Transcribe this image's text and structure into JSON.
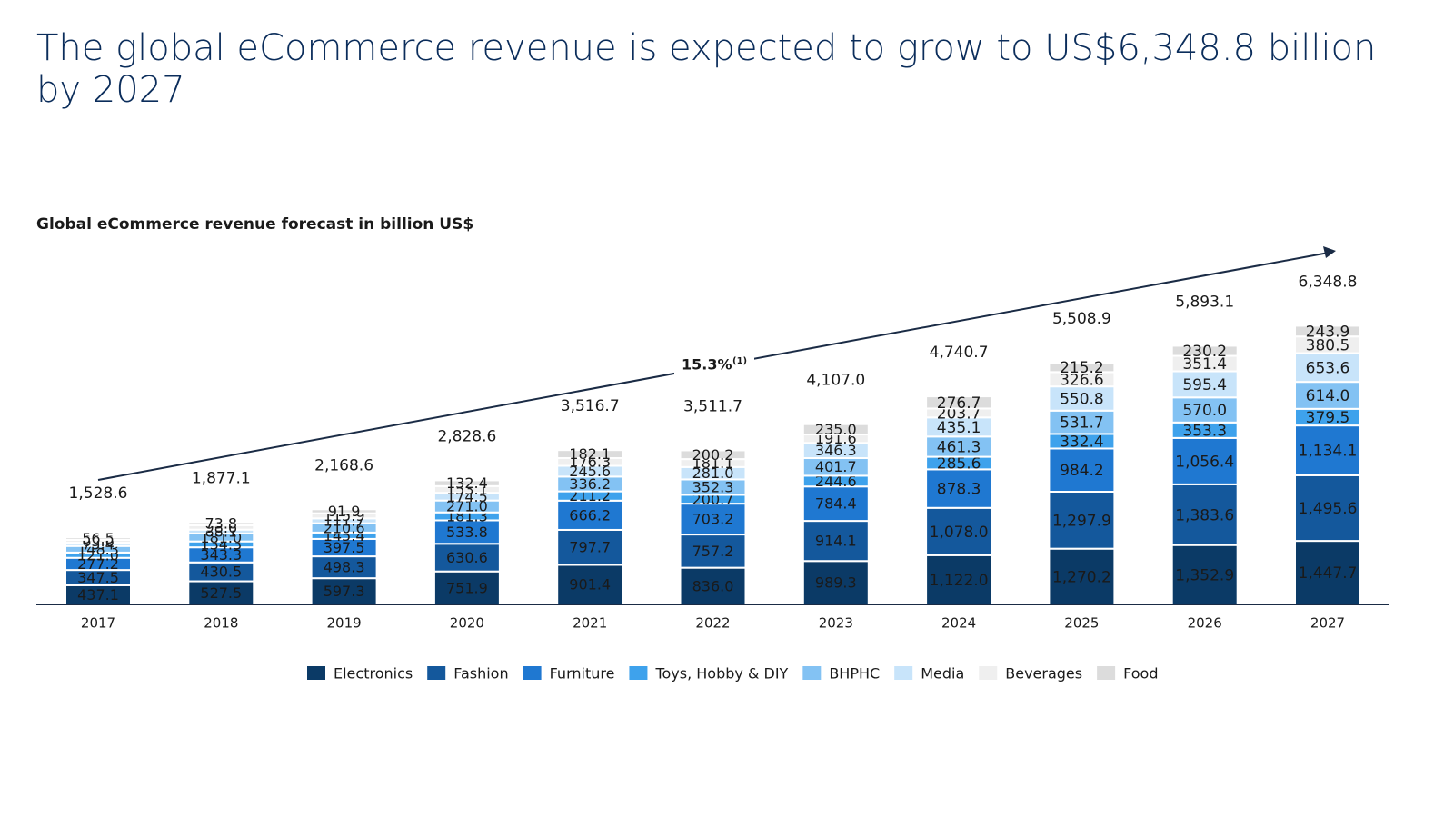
{
  "chart_data": {
    "type": "stacked_bar",
    "title": "The global eCommerce revenue is expected to grow to US$6,348.8 billion by 2027",
    "subtitle": "Global eCommerce revenue forecast in billion US$",
    "annotation": "15.3%",
    "annotation_note": "(1)",
    "categories": [
      "2017",
      "2018",
      "2019",
      "2020",
      "2021",
      "2022",
      "2023",
      "2024",
      "2025",
      "2026",
      "2027"
    ],
    "ylim": [
      0,
      7000
    ],
    "series": [
      {
        "name": "Electronics",
        "color": "#0b3a66",
        "values": [
          437.1,
          527.5,
          597.3,
          751.9,
          901.4,
          836.0,
          989.3,
          1122.0,
          1270.2,
          1352.9,
          1447.7
        ],
        "value_labels": [
          "437.1",
          "527.5",
          "597.3",
          "751.9",
          "901.4",
          "836.0",
          "989.3",
          "1,122.0",
          "1,270.2",
          "1,352.9",
          "1,447.7"
        ]
      },
      {
        "name": "Fashion",
        "color": "#14589c",
        "values": [
          347.5,
          430.5,
          498.3,
          630.6,
          797.7,
          757.2,
          914.1,
          1078.0,
          1297.9,
          1383.6,
          1495.6
        ],
        "value_labels": [
          "347.5",
          "430.5",
          "498.3",
          "630.6",
          "797.7",
          "757.2",
          "914.1",
          "1,078.0",
          "1,297.9",
          "1,383.6",
          "1,495.6"
        ]
      },
      {
        "name": "Furniture",
        "color": "#1f78d1",
        "values": [
          277.2,
          343.3,
          397.5,
          533.8,
          666.2,
          703.2,
          784.4,
          878.3,
          984.2,
          1056.4,
          1134.1
        ],
        "value_labels": [
          "277.2",
          "343.3",
          "397.5",
          "533.8",
          "666.2",
          "703.2",
          "784.4",
          "878.3",
          "984.2",
          "1,056.4",
          "1,134.1"
        ]
      },
      {
        "name": "Toys, Hobby & DIY",
        "color": "#3ea2ec",
        "values": [
          121.0,
          134.3,
          145.4,
          181.3,
          211.2,
          200.7,
          244.6,
          285.6,
          332.4,
          353.3,
          379.5
        ],
        "value_labels": [
          "121.0",
          "134.3",
          "145.4",
          "181.3",
          "211.2",
          "200.7",
          "244.6",
          "285.6",
          "332.4",
          "353.3",
          "379.5"
        ]
      },
      {
        "name": "BHPHC",
        "color": "#83c2f3",
        "values": [
          148.3,
          181.0,
          210.6,
          271.0,
          336.2,
          352.3,
          401.7,
          461.3,
          531.7,
          570.0,
          614.0
        ],
        "value_labels": [
          "148.3",
          "181.0",
          "210.6",
          "271.0",
          "336.2",
          "352.3",
          "401.7",
          "461.3",
          "531.7",
          "570.0",
          "614.0"
        ]
      },
      {
        "name": "Media",
        "color": "#c8e4fa",
        "values": [
          75.4,
          88.1,
          111.7,
          174.5,
          245.6,
          281.0,
          346.3,
          435.1,
          550.8,
          595.4,
          653.6
        ],
        "value_labels": [
          "75.4",
          "88.1",
          "111.7",
          "174.5",
          "245.6",
          "281.0",
          "346.3",
          "435.1",
          "550.8",
          "595.4",
          "653.6"
        ]
      },
      {
        "name": "Beverages",
        "color": "#efefef",
        "values": [
          65.6,
          98.6,
          115.9,
          153.1,
          176.3,
          181.1,
          191.6,
          203.7,
          326.6,
          351.4,
          380.5
        ],
        "value_labels": [
          "65.6",
          "98.6",
          "115.9",
          "153.1",
          "176.3",
          "181.1",
          "191.6",
          "203.7",
          "326.6",
          "351.4",
          "380.5"
        ]
      },
      {
        "name": "Food",
        "color": "#dcdcdc",
        "values": [
          56.5,
          73.8,
          91.9,
          132.4,
          182.1,
          200.2,
          235.0,
          276.7,
          215.2,
          230.2,
          243.9
        ],
        "value_labels": [
          "56.5",
          "73.8",
          "91.9",
          "132.4",
          "182.1",
          "200.2",
          "235.0",
          "276.7",
          "215.2",
          "230.2",
          "243.9"
        ]
      }
    ],
    "totals": {
      "values": [
        1528.6,
        1877.1,
        2168.6,
        2828.6,
        3516.7,
        3511.7,
        4107.0,
        4740.7,
        5508.9,
        5893.1,
        6348.8
      ],
      "value_labels": [
        "1,528.6",
        "1,877.1",
        "2,168.6",
        "2,828.6",
        "3,516.7",
        "3,511.7",
        "4,107.0",
        "4,740.7",
        "5,508.9",
        "5,893.1",
        "6,348.8"
      ]
    }
  }
}
